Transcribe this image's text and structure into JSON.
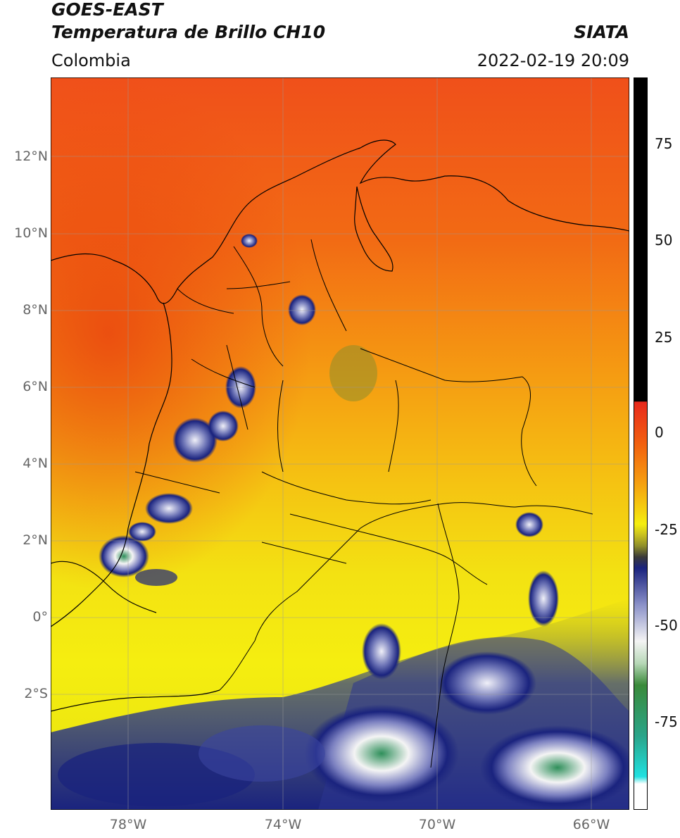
{
  "header": {
    "title_line1": "GOES-EAST",
    "title_line2": "Temperatura de Brillo CH10",
    "brand": "SIATA",
    "region": "Colombia",
    "timestamp": "2022-02-19 20:09"
  },
  "map": {
    "lat_labels": [
      "12°N",
      "10°N",
      "8°N",
      "6°N",
      "4°N",
      "2°N",
      "0°",
      "2°S"
    ],
    "lon_labels": [
      "78°W",
      "74°W",
      "70°W",
      "66°W"
    ]
  },
  "colorbar": {
    "ticks": [
      "75",
      "50",
      "25",
      "0",
      "-25",
      "-50",
      "-75"
    ],
    "palette": {
      "warm_top": "#f04a10",
      "orange": "#f59a10",
      "yellow": "#f5ee10",
      "olive": "#8e8e2a",
      "navy": "#1a237e",
      "white": "#f4f4f4",
      "green": "#3a8a3a",
      "teal": "#2aa58a",
      "cyan": "#20e0e0",
      "black": "#000000",
      "red": "#e8291c"
    }
  }
}
